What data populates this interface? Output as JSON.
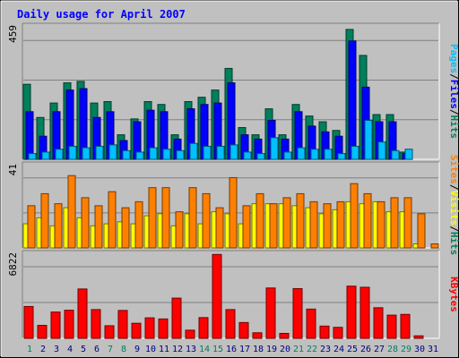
{
  "title": "Daily usage for April 2007",
  "colors": {
    "background": "#c0c0c0",
    "plot_bg": "#c0c0c0",
    "title": "#0000ff",
    "hits": "#00805c",
    "files": "#0000ff",
    "pages": "#00c0ff",
    "visits": "#ffff00",
    "sites": "#ff8000",
    "kbytes": "#ff0000",
    "weekend_label": "#00805c",
    "weekday_label": "#000080"
  },
  "chart_data": [
    {
      "type": "bar",
      "panel": "hits-files-pages",
      "ymax_label": "459",
      "ylim": [
        0,
        459
      ],
      "categories": [
        "1",
        "2",
        "3",
        "4",
        "5",
        "6",
        "7",
        "8",
        "9",
        "10",
        "11",
        "12",
        "13",
        "14",
        "15",
        "16",
        "17",
        "18",
        "19",
        "20",
        "21",
        "22",
        "23",
        "24",
        "25",
        "26",
        "27",
        "28",
        "29",
        "30",
        "31"
      ],
      "weekend_days": [
        "1",
        "7",
        "8",
        "14",
        "15",
        "21",
        "22",
        "28",
        "29"
      ],
      "legend": [
        "Pages",
        "Files",
        "Hits"
      ],
      "series": [
        {
          "name": "Hits",
          "color": "#00805c",
          "values": [
            260,
            145,
            195,
            265,
            270,
            195,
            200,
            85,
            140,
            200,
            190,
            85,
            200,
            215,
            240,
            315,
            110,
            85,
            175,
            85,
            190,
            150,
            130,
            100,
            450,
            360,
            155,
            155,
            25,
            0,
            0
          ]
        },
        {
          "name": "Files",
          "color": "#0000ff",
          "values": [
            165,
            80,
            165,
            240,
            245,
            145,
            165,
            65,
            130,
            170,
            165,
            70,
            175,
            190,
            195,
            265,
            85,
            70,
            135,
            70,
            165,
            115,
            95,
            80,
            410,
            250,
            130,
            130,
            20,
            0,
            0
          ]
        },
        {
          "name": "Pages",
          "color": "#00c0ff",
          "values": [
            20,
            25,
            35,
            45,
            40,
            45,
            50,
            30,
            25,
            40,
            35,
            30,
            55,
            45,
            45,
            50,
            25,
            20,
            75,
            25,
            40,
            35,
            35,
            20,
            45,
            135,
            60,
            30,
            35,
            0,
            0
          ]
        }
      ]
    },
    {
      "type": "bar",
      "panel": "visits-sites",
      "ymax_label": "41",
      "ylim": [
        0,
        41
      ],
      "categories": [
        "1",
        "2",
        "3",
        "4",
        "5",
        "6",
        "7",
        "8",
        "9",
        "10",
        "11",
        "12",
        "13",
        "14",
        "15",
        "16",
        "17",
        "18",
        "19",
        "20",
        "21",
        "22",
        "23",
        "24",
        "25",
        "26",
        "27",
        "28",
        "29",
        "30",
        "31"
      ],
      "legend": [
        "Sites",
        "Visits",
        "Hits"
      ],
      "series": [
        {
          "name": "Visits",
          "color": "#ffff00",
          "values": [
            12,
            15,
            11,
            20,
            15,
            11,
            12,
            13,
            12,
            16,
            17,
            11,
            17,
            12,
            18,
            17,
            12,
            22,
            22,
            22,
            21,
            20,
            17,
            19,
            23,
            22,
            23,
            18,
            18,
            2,
            0
          ]
        },
        {
          "name": "Sites",
          "color": "#ff8000",
          "values": [
            21,
            27,
            22,
            36,
            25,
            21,
            28,
            20,
            23,
            30,
            30,
            18,
            30,
            27,
            20,
            35,
            21,
            27,
            22,
            25,
            27,
            23,
            22,
            23,
            32,
            27,
            23,
            25,
            25,
            17,
            2
          ]
        }
      ]
    },
    {
      "type": "bar",
      "panel": "kbytes",
      "ymax_label": "6822",
      "ylim": [
        0,
        6822
      ],
      "categories": [
        "1",
        "2",
        "3",
        "4",
        "5",
        "6",
        "7",
        "8",
        "9",
        "10",
        "11",
        "12",
        "13",
        "14",
        "15",
        "16",
        "17",
        "18",
        "19",
        "20",
        "21",
        "22",
        "23",
        "24",
        "25",
        "26",
        "27",
        "28",
        "29",
        "30",
        "31"
      ],
      "legend": [
        "KBytes"
      ],
      "series": [
        {
          "name": "KBytes",
          "color": "#ff0000",
          "values": [
            2580,
            1050,
            2130,
            2280,
            4000,
            2330,
            1020,
            2260,
            1220,
            1660,
            1570,
            3260,
            660,
            1680,
            6800,
            2330,
            1280,
            450,
            4080,
            400,
            4030,
            2370,
            990,
            890,
            4230,
            4140,
            2480,
            1880,
            1940,
            200,
            0
          ]
        }
      ]
    }
  ]
}
